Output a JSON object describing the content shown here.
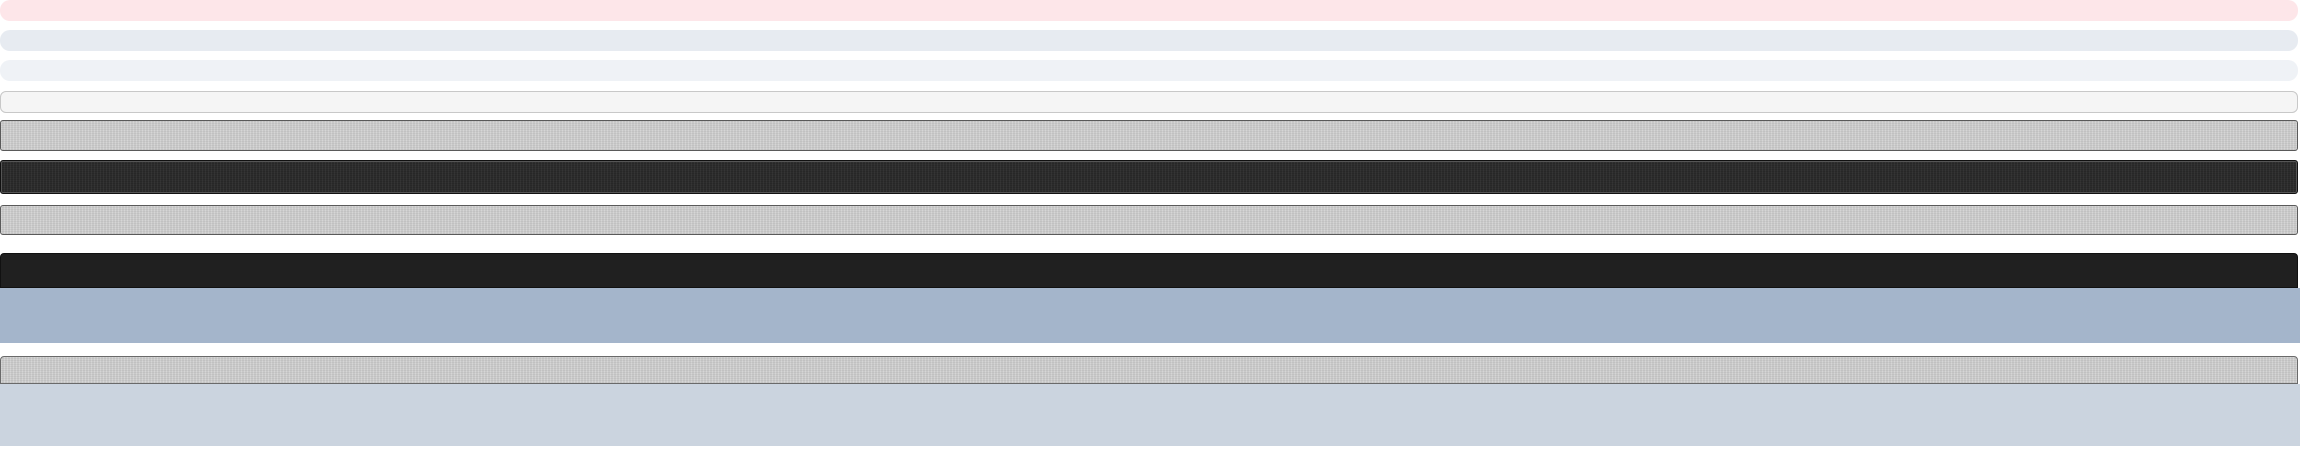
{
  "page": {
    "colors": {
      "alert_pink": "#fde6e9",
      "soft_gray_blue": "#e7ebf1",
      "soft_gray_blue_2": "#eff2f6",
      "light_panel": "#f5f5f5",
      "textured_gray": "#cfcfcf",
      "textured_dark": "#2a2a2a",
      "dark_toolbar": "#202020",
      "steel_blue": "#a4b5cb",
      "light_steel_blue": "#cbd4df"
    }
  }
}
